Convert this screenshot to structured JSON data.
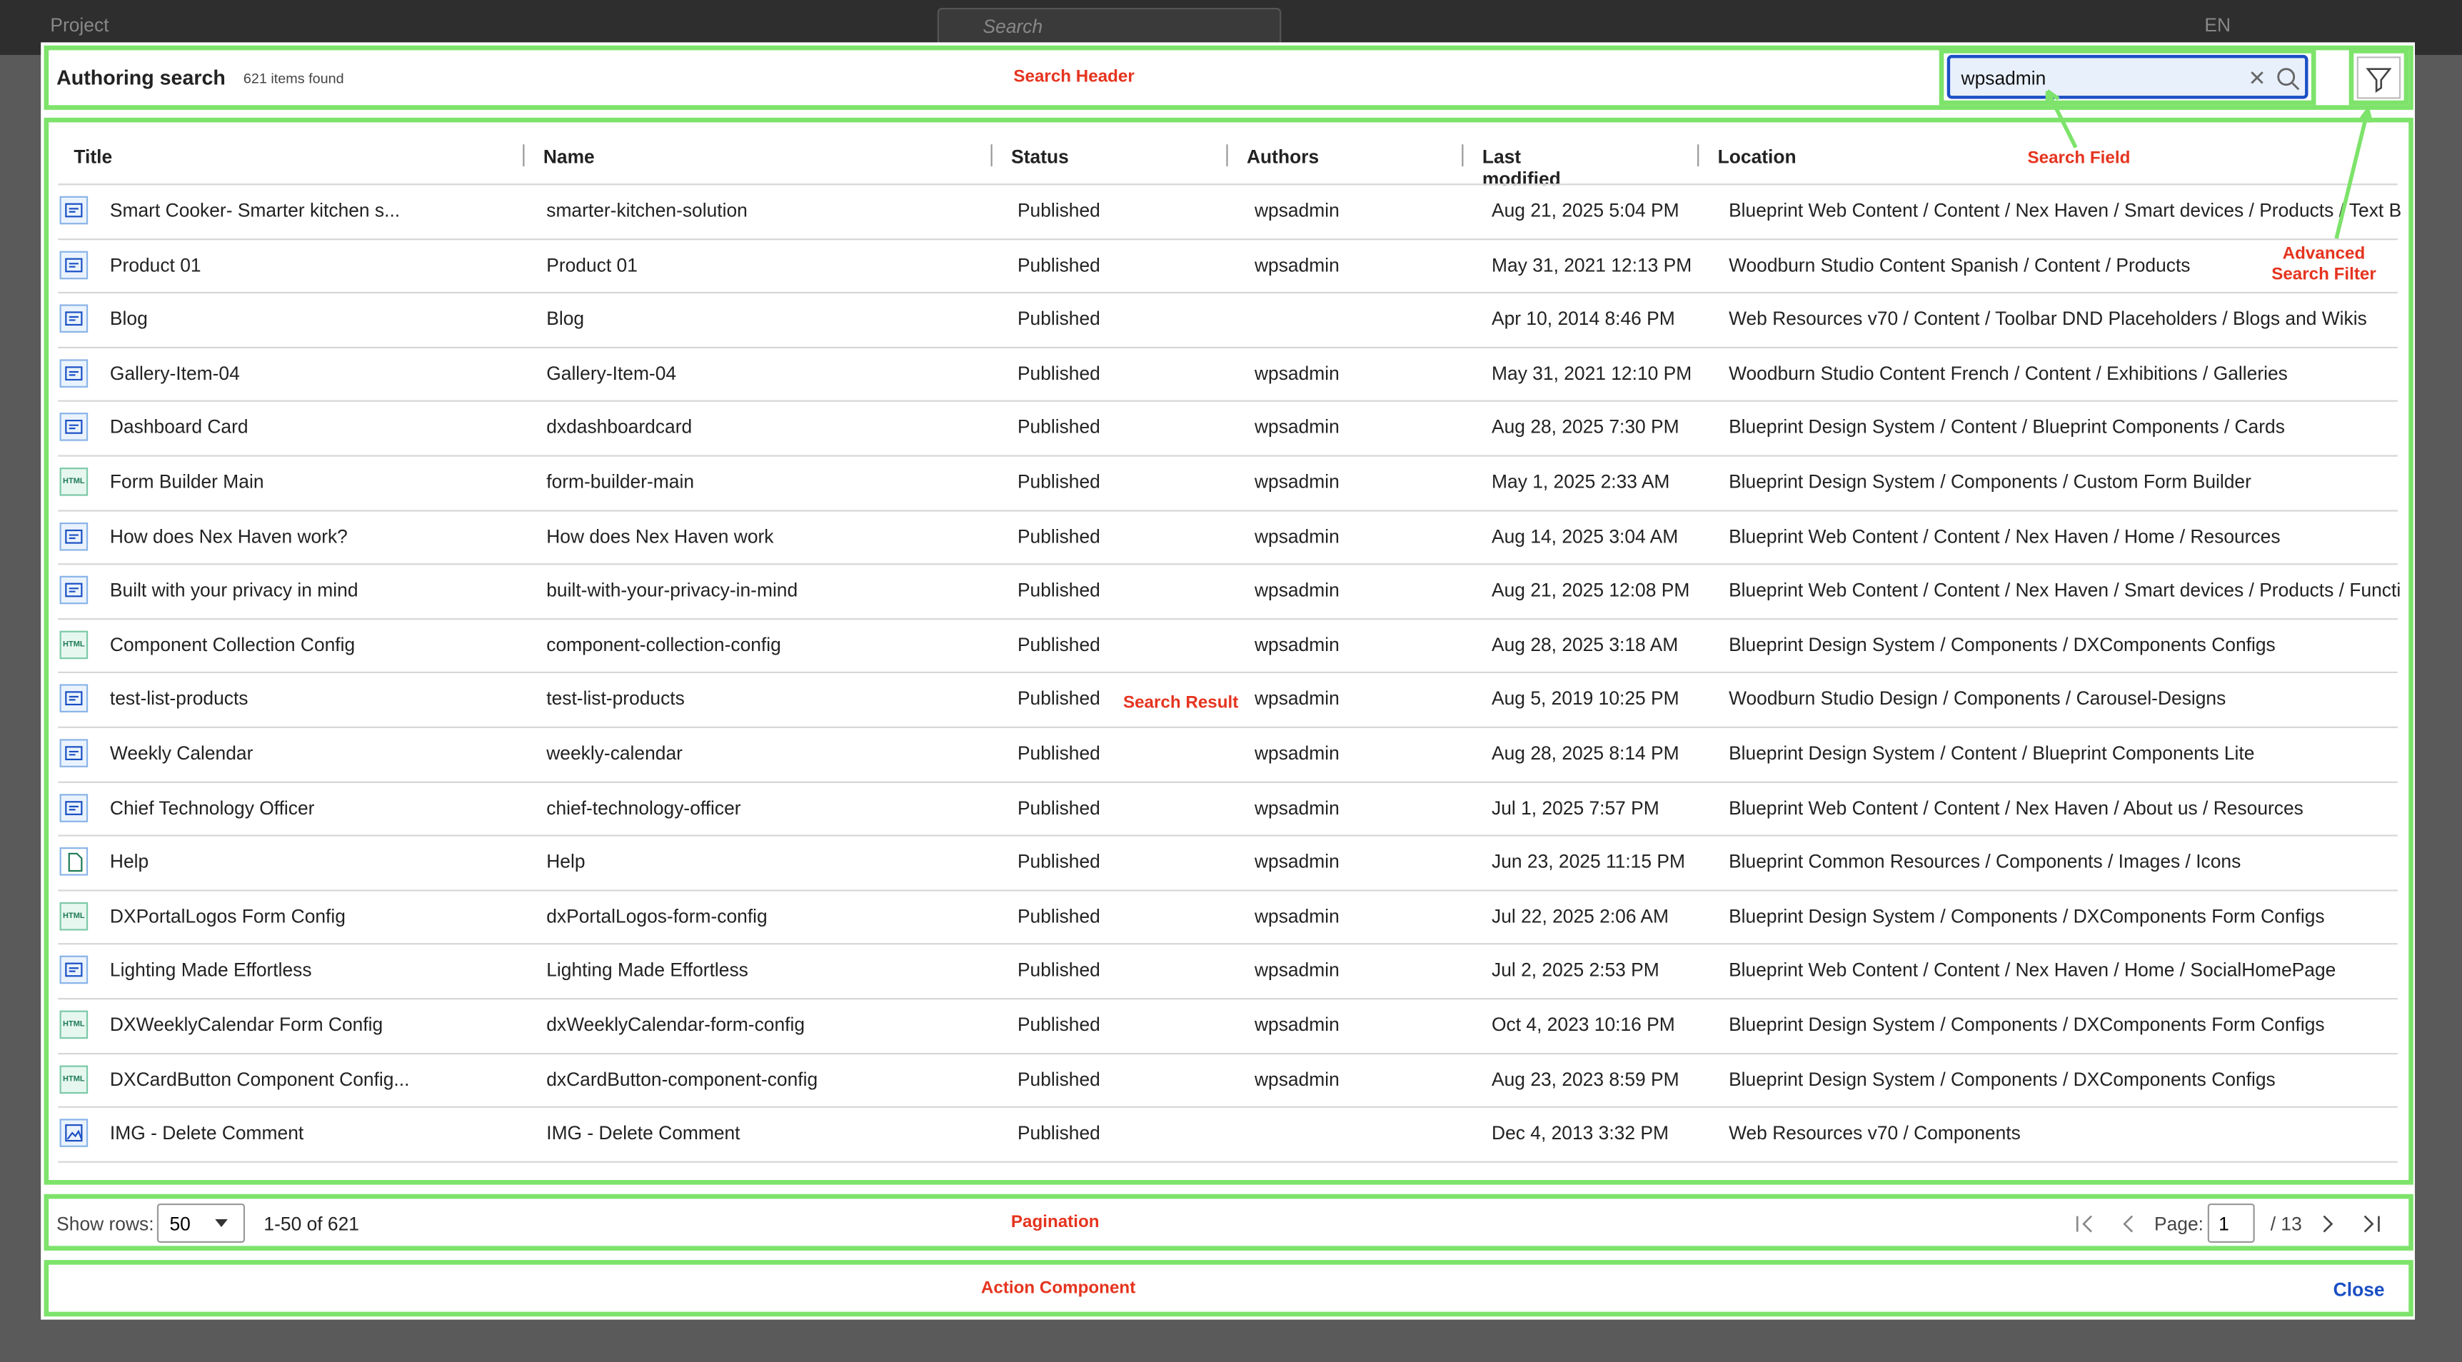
{
  "topbar": {
    "project": "Project",
    "search": "Search",
    "language": "EN"
  },
  "header": {
    "title": "Authoring search",
    "count": "621 items found",
    "search_value": "wpsadmin"
  },
  "annotations": {
    "search_header": "Search Header",
    "search_field": "Search Field",
    "advanced_filter": "Advanced\nSearch Filter",
    "search_result": "Search Result",
    "pagination": "Pagination",
    "action": "Action Component"
  },
  "table": {
    "columns": [
      "Title",
      "Name",
      "Status",
      "Authors",
      "Last modified",
      "Location"
    ],
    "rows": [
      {
        "icon": "content",
        "cells": [
          "Smart Cooker- Smarter kitchen s...",
          "smarter-kitchen-solution",
          "Published",
          "wpsadmin",
          "Aug 21, 2025 5:04 PM",
          "Blueprint Web Content / Content / Nex Haven / Smart devices / Products / Text B..."
        ]
      },
      {
        "icon": "content",
        "cells": [
          "Product 01",
          "Product 01",
          "Published",
          "wpsadmin",
          "May 31, 2021 12:13 PM",
          "Woodburn Studio Content Spanish / Content / Products"
        ]
      },
      {
        "icon": "content",
        "cells": [
          "Blog",
          "Blog",
          "Published",
          null,
          "Apr 10, 2014 8:46 PM",
          "Web Resources v70 / Content / Toolbar DND Placeholders / Blogs and Wikis"
        ]
      },
      {
        "icon": "content",
        "cells": [
          "Gallery-Item-04",
          "Gallery-Item-04",
          "Published",
          "wpsadmin",
          "May 31, 2021 12:10 PM",
          "Woodburn Studio Content French / Content / Exhibitions / Galleries"
        ]
      },
      {
        "icon": "content",
        "cells": [
          "Dashboard Card",
          "dxdashboardcard",
          "Published",
          "wpsadmin",
          "Aug 28, 2025 7:30 PM",
          "Blueprint Design System / Content / Blueprint Components / Cards"
        ]
      },
      {
        "icon": "HTML",
        "cells": [
          "Form Builder Main",
          "form-builder-main",
          "Published",
          "wpsadmin",
          "May 1, 2025 2:33 AM",
          "Blueprint Design System / Components / Custom Form Builder"
        ]
      },
      {
        "icon": "content",
        "cells": [
          "How does Nex Haven work?",
          "How does Nex Haven work",
          "Published",
          "wpsadmin",
          "Aug 14, 2025 3:04 AM",
          "Blueprint Web Content / Content / Nex Haven / Home / Resources"
        ]
      },
      {
        "icon": "content",
        "cells": [
          "Built with your privacy in mind",
          "built-with-your-privacy-in-mind",
          "Published",
          "wpsadmin",
          "Aug 21, 2025 12:08 PM",
          "Blueprint Web Content / Content / Nex Haven / Smart devices / Products / Functi..."
        ]
      },
      {
        "icon": "HTML",
        "cells": [
          "Component Collection Config",
          "component-collection-config",
          "Published",
          "wpsadmin",
          "Aug 28, 2025 3:18 AM",
          "Blueprint Design System / Components / DXComponents Configs"
        ]
      },
      {
        "icon": "content",
        "cells": [
          "test-list-products",
          "test-list-products",
          "Published",
          "wpsadmin",
          "Aug 5, 2019 10:25 PM",
          "Woodburn Studio Design / Components / Carousel-Designs"
        ]
      },
      {
        "icon": "content",
        "cells": [
          "Weekly Calendar",
          "weekly-calendar",
          "Published",
          "wpsadmin",
          "Aug 28, 2025 8:14 PM",
          "Blueprint Design System / Content / Blueprint Components Lite"
        ]
      },
      {
        "icon": "content",
        "cells": [
          "Chief Technology Officer",
          "chief-technology-officer",
          "Published",
          "wpsadmin",
          "Jul 1, 2025 7:57 PM",
          "Blueprint Web Content / Content / Nex Haven / About us / Resources"
        ]
      },
      {
        "icon": "file",
        "cells": [
          "Help",
          "Help",
          "Published",
          "wpsadmin",
          "Jun 23, 2025 11:15 PM",
          "Blueprint Common Resources / Components / Images / Icons"
        ]
      },
      {
        "icon": "HTML",
        "cells": [
          "DXPortalLogos Form Config",
          "dxPortalLogos-form-config",
          "Published",
          "wpsadmin",
          "Jul 22, 2025 2:06 AM",
          "Blueprint Design System / Components / DXComponents Form Configs"
        ]
      },
      {
        "icon": "content",
        "cells": [
          "Lighting Made Effortless",
          "Lighting Made Effortless",
          "Published",
          "wpsadmin",
          "Jul 2, 2025 2:53 PM",
          "Blueprint Web Content / Content / Nex Haven / Home / SocialHomePage"
        ]
      },
      {
        "icon": "HTML",
        "cells": [
          "DXWeeklyCalendar Form Config",
          "dxWeeklyCalendar-form-config",
          "Published",
          "wpsadmin",
          "Oct 4, 2023 10:16 PM",
          "Blueprint Design System / Components / DXComponents Form Configs"
        ]
      },
      {
        "icon": "HTML",
        "cells": [
          "DXCardButton Component Config...",
          "dxCardButton-component-config",
          "Published",
          "wpsadmin",
          "Aug 23, 2023 8:59 PM",
          "Blueprint Design System / Components / DXComponents Configs"
        ]
      },
      {
        "icon": "image",
        "cells": [
          "IMG - Delete Comment",
          "IMG - Delete Comment",
          "Published",
          null,
          "Dec 4, 2013 3:32 PM",
          "Web Resources v70 / Components"
        ]
      }
    ]
  },
  "pagination": {
    "show_rows": "Show rows:",
    "rows_value": "50",
    "range": "1-50 of 621",
    "page_label": "Page:",
    "page_value": "1",
    "page_total": "/ 13"
  },
  "actions": {
    "close": "Close"
  }
}
